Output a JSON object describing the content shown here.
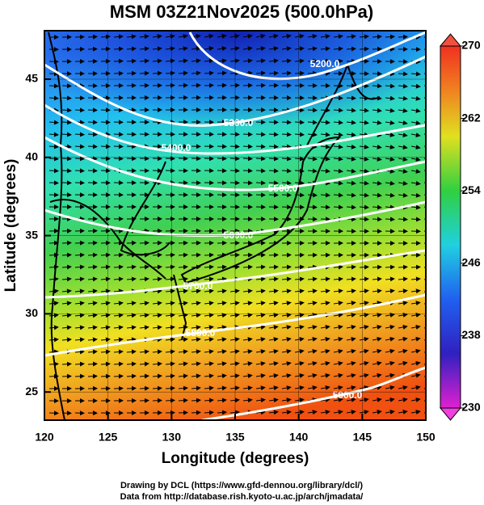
{
  "title": "MSM 03Z21Nov2025 (500.0hPa)",
  "x_label": "Longitude (degrees)",
  "y_label": "Latitude  (degrees)",
  "xlim": [
    120,
    150
  ],
  "xticks": [
    120,
    125,
    130,
    135,
    140,
    145,
    150
  ],
  "ylim": [
    23.2,
    48.1
  ],
  "yticks": [
    25,
    30,
    35,
    40,
    45
  ],
  "colorbar": {
    "lim": [
      230,
      270
    ],
    "ticks": [
      230,
      238,
      246,
      254,
      262,
      270
    ]
  },
  "contour_labels": [
    "5200.0",
    "5300.0",
    "5400.0",
    "5500.0",
    "5600.0",
    "5700.0",
    "5800.0",
    "5900.0"
  ],
  "credits": [
    "Drawing by DCL (https://www.gfd-dennou.org/library/dcl/)",
    "Data from http://database.rish.kyoto-u.ac.jp/arch/jmadata/"
  ]
}
